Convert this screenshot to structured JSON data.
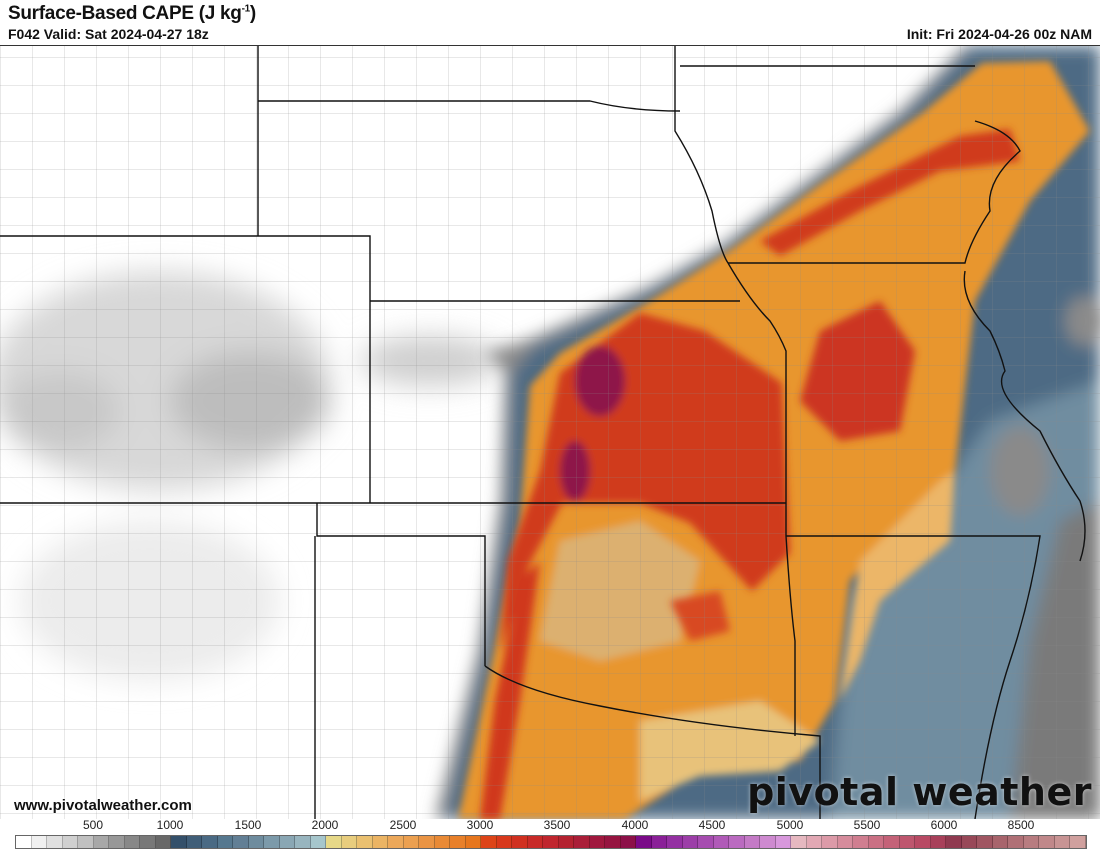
{
  "header": {
    "title": "Surface-Based CAPE (J kg",
    "title_sup": "-1",
    "title_end": ")",
    "valid": "F042 Valid: Sat 2024-04-27 18z",
    "init": "Init: Fri 2024-04-26 00z NAM"
  },
  "footer": {
    "website": "www.pivotalweather.com",
    "brand": "pivotal weather"
  },
  "colorbar": {
    "labels": [
      "500",
      "1000",
      "1500",
      "2000",
      "2500",
      "3000",
      "3500",
      "4000",
      "4500",
      "5000",
      "5500",
      "6000",
      "8500"
    ],
    "colors": [
      "#ffffff",
      "#f0f0f0",
      "#e0e0e0",
      "#d0d0d0",
      "#c0c0c0",
      "#a8a8a8",
      "#989898",
      "#888888",
      "#787878",
      "#686868",
      "#34506a",
      "#405e78",
      "#4a6a84",
      "#56788f",
      "#627f95",
      "#6e8c9e",
      "#7c9aaa",
      "#8aa7b4",
      "#98b5bf",
      "#a6c6cc",
      "#e6d888",
      "#e8cd7e",
      "#eac070",
      "#ebb464",
      "#eca85a",
      "#eca050",
      "#ea9444",
      "#e98a36",
      "#e8802a",
      "#e6761e",
      "#dd4418",
      "#d8381c",
      "#d03020",
      "#c82a28",
      "#c0262e",
      "#b42230",
      "#aa1e38",
      "#a0183e",
      "#961440",
      "#8c1048",
      "#7a0a88",
      "#8a2098",
      "#9430a2",
      "#9c3ea8",
      "#a64cb0",
      "#b05ab8",
      "#ba6ac0",
      "#c47ac6",
      "#ce8ad0",
      "#d898dc",
      "#e6b8c0",
      "#e2a8b4",
      "#dc9aa8",
      "#d68c9c",
      "#d07e90",
      "#ca7084",
      "#c46278",
      "#be566e",
      "#b84a64",
      "#a8405a",
      "#903a50",
      "#984858",
      "#a05662",
      "#a8646c",
      "#b07076",
      "#b87c80",
      "#c0888a",
      "#c89494",
      "#d0a09e"
    ],
    "label_values": [
      500,
      1000,
      1500,
      2000,
      2500,
      3000,
      3500,
      4000,
      4500,
      5000,
      5500,
      6000,
      8500
    ]
  },
  "map": {
    "field": "Surface-Based CAPE",
    "units": "J/kg",
    "region": "Central Plains / Mississippi Valley"
  }
}
